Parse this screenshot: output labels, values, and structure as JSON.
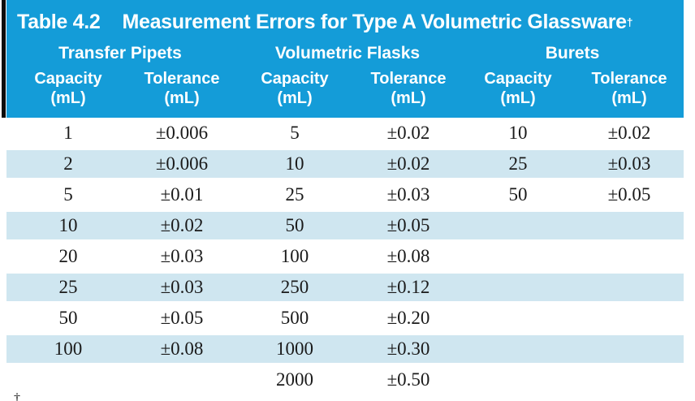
{
  "header": {
    "label": "Table 4.2",
    "title": "Measurement Errors for Type A Volumetric Glassware",
    "dagger": "†",
    "groups": [
      "Transfer Pipets",
      "Volumetric Flasks",
      "Burets"
    ],
    "col": {
      "capacity": "Capacity",
      "tolerance": "Tolerance",
      "unit": "(mL)"
    }
  },
  "rows": [
    [
      "1",
      "±0.006",
      "5",
      "±0.02",
      "10",
      "±0.02"
    ],
    [
      "2",
      "±0.006",
      "10",
      "±0.02",
      "25",
      "±0.03"
    ],
    [
      "5",
      "±0.01",
      "25",
      "±0.03",
      "50",
      "±0.05"
    ],
    [
      "10",
      "±0.02",
      "50",
      "±0.05",
      "",
      ""
    ],
    [
      "20",
      "±0.03",
      "100",
      "±0.08",
      "",
      ""
    ],
    [
      "25",
      "±0.03",
      "250",
      "±0.12",
      "",
      ""
    ],
    [
      "50",
      "±0.05",
      "500",
      "±0.20",
      "",
      ""
    ],
    [
      "100",
      "±0.08",
      "1000",
      "±0.30",
      "",
      ""
    ],
    [
      "",
      "",
      "2000",
      "±0.50",
      "",
      ""
    ]
  ],
  "footnote_marker": "†",
  "colors": {
    "header_bg": "#149CD8",
    "row_alt_bg": "#CFE6F0",
    "header_text": "#FFFFFF",
    "body_text": "#1A1A1A",
    "accent_bar": "#0C0C0C"
  },
  "chart_data": {
    "type": "table",
    "title": "Table 4.2 Measurement Errors for Type A Volumetric Glassware†",
    "groups": [
      "Transfer Pipets",
      "Volumetric Flasks",
      "Burets"
    ],
    "columns_per_group": [
      "Capacity (mL)",
      "Tolerance (mL)"
    ],
    "transfer_pipets": {
      "capacity_mL": [
        1,
        2,
        5,
        10,
        20,
        25,
        50,
        100
      ],
      "tolerance_mL": [
        0.006,
        0.006,
        0.01,
        0.02,
        0.03,
        0.03,
        0.05,
        0.08
      ]
    },
    "volumetric_flasks": {
      "capacity_mL": [
        5,
        10,
        25,
        50,
        100,
        250,
        500,
        1000,
        2000
      ],
      "tolerance_mL": [
        0.02,
        0.02,
        0.03,
        0.05,
        0.08,
        0.12,
        0.2,
        0.3,
        0.5
      ]
    },
    "burets": {
      "capacity_mL": [
        10,
        25,
        50
      ],
      "tolerance_mL": [
        0.02,
        0.03,
        0.05
      ]
    },
    "layout_hints": {
      "alternating_row_shading": true,
      "tolerance_prefix": "±"
    }
  }
}
